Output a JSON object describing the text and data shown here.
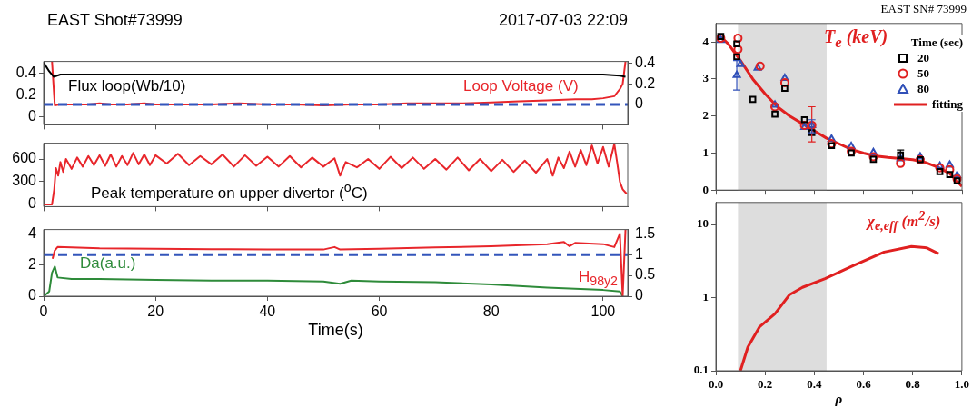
{
  "chart_data": [
    {
      "type": "line",
      "title": "EAST Shot#73999",
      "subtitle": "2017-07-03 22:09",
      "xlim": [
        0,
        104.4
      ],
      "xticks": [
        0,
        20,
        40,
        60,
        80,
        100
      ],
      "ylim": [
        -0.07,
        0.51
      ],
      "yticks": [
        0,
        0.2,
        0.4
      ],
      "y2lim": [
        -0.2,
        0.42
      ],
      "y2ticks": [
        0,
        0.2,
        0.4
      ],
      "tick_labels": "y",
      "ref_lines": [
        {
          "axis": "y2",
          "value": 0,
          "color": "#3355bb",
          "line_style": "dashed"
        }
      ],
      "series": [
        {
          "name": "Flux loop(Wb/10)",
          "color": "#000000",
          "x": [
            0,
            1,
            1.8,
            3,
            10,
            20,
            40,
            60,
            80,
            100,
            103,
            104
          ],
          "values": [
            0.5,
            0.42,
            0.37,
            0.39,
            0.39,
            0.39,
            0.39,
            0.39,
            0.39,
            0.39,
            0.38,
            0.37
          ]
        },
        {
          "name": "Loop Voltage (V)",
          "color": "#e8262b",
          "axis": "y2",
          "x": [
            1.5,
            2,
            3,
            5,
            8,
            10,
            12,
            15,
            18,
            20,
            25,
            30,
            35,
            40,
            45,
            50,
            55,
            60,
            65,
            70,
            75,
            80,
            85,
            90,
            95,
            98,
            100,
            102,
            103,
            103.5,
            104
          ],
          "values": [
            0.42,
            -0.01,
            0,
            0,
            0,
            0.01,
            0,
            0,
            0.01,
            0,
            0,
            0,
            0.01,
            0,
            0,
            -0.01,
            0,
            0,
            0.01,
            0.01,
            0.01,
            0.02,
            0.03,
            0.04,
            0.05,
            0.05,
            0.06,
            0.08,
            0.15,
            0.2,
            0.42
          ]
        }
      ]
    },
    {
      "type": "line",
      "xlim": [
        0,
        104.4
      ],
      "xticks": [
        0,
        20,
        40,
        60,
        80,
        100
      ],
      "ylim": [
        -30,
        810
      ],
      "yticks": [
        0,
        300,
        600
      ],
      "tick_labels": "y",
      "series": [
        {
          "name": "Peak temperature on upper divertor ($^{o}$C)",
          "color": "#e8262b",
          "x": [
            0,
            1.5,
            1.9,
            2.2,
            2.6,
            3,
            3.5,
            4,
            5,
            6,
            7,
            8,
            9,
            10,
            11,
            12,
            13,
            14,
            15,
            16,
            17,
            18,
            19,
            20,
            22,
            24,
            26,
            28,
            30,
            32,
            34,
            36,
            38,
            40,
            42,
            44,
            46,
            48,
            50,
            52,
            53,
            54,
            56,
            58,
            60,
            62,
            64,
            66,
            68,
            70,
            72,
            74,
            76,
            78,
            80,
            82,
            84,
            86,
            88,
            90,
            91,
            92,
            93,
            94,
            95,
            96,
            97,
            98,
            99,
            100,
            101,
            102,
            102.5,
            103,
            103.5,
            104.2
          ],
          "values": [
            0,
            0,
            200,
            480,
            380,
            560,
            430,
            600,
            470,
            620,
            500,
            640,
            520,
            650,
            510,
            660,
            500,
            640,
            520,
            680,
            530,
            660,
            520,
            650,
            540,
            670,
            520,
            640,
            530,
            660,
            500,
            650,
            510,
            630,
            500,
            640,
            490,
            620,
            500,
            610,
            380,
            560,
            490,
            600,
            470,
            630,
            480,
            620,
            470,
            600,
            460,
            620,
            450,
            600,
            440,
            590,
            430,
            580,
            420,
            600,
            380,
            620,
            480,
            700,
            500,
            720,
            520,
            780,
            540,
            760,
            500,
            800,
            560,
            300,
            200,
            140
          ]
        }
      ]
    },
    {
      "type": "line",
      "xlabel": "Time(s)",
      "xlim": [
        0,
        104.4
      ],
      "xticks": [
        0,
        20,
        40,
        60,
        80,
        100
      ],
      "ylim": [
        0,
        4.27
      ],
      "yticks": [
        0,
        2,
        4
      ],
      "y2lim": [
        0,
        1.6
      ],
      "y2ticks": [
        0,
        0.5,
        1,
        1.5
      ],
      "ref_lines": [
        {
          "axis": "y2",
          "value": 1,
          "color": "#3355bb",
          "line_style": "dashed"
        }
      ],
      "series": [
        {
          "name": "H$_{98y2}$",
          "color": "#e8262b",
          "axis": "y2",
          "x": [
            1.6,
            2,
            2.5,
            5,
            10,
            20,
            30,
            40,
            50,
            52,
            53,
            60,
            70,
            80,
            90,
            93,
            94,
            95,
            100,
            102,
            103,
            103.5,
            104
          ],
          "values": [
            0.9,
            1.1,
            1.18,
            1.17,
            1.15,
            1.14,
            1.13,
            1.12,
            1.12,
            1.18,
            1.12,
            1.14,
            1.17,
            1.2,
            1.25,
            1.3,
            1.2,
            1.28,
            1.25,
            1.18,
            1.5,
            0,
            1.6
          ]
        },
        {
          "name": "Da(a.u.)",
          "color": "#2e8b3a",
          "x": [
            0,
            1,
            1.5,
            2,
            2.5,
            5,
            10,
            20,
            30,
            40,
            50,
            53,
            55,
            60,
            70,
            80,
            90,
            100,
            103,
            103.5
          ],
          "values": [
            0,
            0.3,
            1.5,
            1.9,
            1.2,
            1.1,
            1.1,
            1.05,
            1.0,
            1.0,
            0.95,
            0.8,
            1.0,
            0.95,
            0.9,
            0.75,
            0.55,
            0.4,
            0.3,
            0
          ]
        }
      ]
    },
    {
      "type": "scatter",
      "title": "EAST SN# 73999",
      "annotations": [
        "T$_{e}$ (keV)"
      ],
      "legend": "top right",
      "legend_title": "Time (sec)",
      "xlim": [
        0,
        1
      ],
      "xticks": [
        0,
        0.2,
        0.4,
        0.6,
        0.8,
        1
      ],
      "ylim": [
        0,
        4.5
      ],
      "yticks": [
        0,
        1,
        2,
        3,
        4
      ],
      "tick_labels": "y",
      "bands": [
        {
          "axis": "x",
          "from": 0.09,
          "to": 0.45,
          "color": "#dddddd"
        }
      ],
      "series": [
        {
          "name": "20",
          "color": "#000000",
          "marker": "square",
          "x": [
            0.02,
            0.085,
            0.085,
            0.15,
            0.24,
            0.28,
            0.36,
            0.39,
            0.47,
            0.55,
            0.64,
            0.75,
            0.83,
            0.91,
            0.95,
            0.98
          ],
          "values": [
            4.15,
            3.95,
            3.6,
            2.45,
            2.05,
            2.75,
            1.9,
            1.55,
            1.2,
            1.0,
            0.83,
            0.95,
            0.82,
            0.5,
            0.42,
            0.25
          ],
          "errors": [
            null,
            null,
            null,
            null,
            null,
            null,
            null,
            null,
            null,
            null,
            null,
            [
              0.85,
              1.08
            ],
            null,
            null,
            null,
            null
          ]
        },
        {
          "name": "50",
          "color": "#e02020",
          "marker": "circle",
          "x": [
            0.02,
            0.09,
            0.09,
            0.18,
            0.24,
            0.28,
            0.36,
            0.39,
            0.47,
            0.55,
            0.64,
            0.75,
            0.83,
            0.91,
            0.95,
            0.98
          ],
          "values": [
            4.1,
            4.1,
            3.8,
            3.35,
            2.25,
            2.9,
            1.75,
            1.75,
            1.25,
            1.05,
            0.9,
            0.72,
            0.82,
            0.6,
            0.55,
            0.3
          ],
          "errors": [
            null,
            null,
            null,
            null,
            null,
            null,
            null,
            [
              1.3,
              2.25
            ],
            null,
            null,
            null,
            null,
            null,
            null,
            null,
            null
          ]
        },
        {
          "name": "80",
          "color": "#3050b8",
          "marker": "triangle",
          "x": [
            0.02,
            0.085,
            0.1,
            0.17,
            0.24,
            0.28,
            0.36,
            0.39,
            0.47,
            0.55,
            0.64,
            0.75,
            0.83,
            0.91,
            0.95,
            0.98
          ],
          "values": [
            4.05,
            3.1,
            3.4,
            3.3,
            2.3,
            3.02,
            1.7,
            1.75,
            1.38,
            1.18,
            1.02,
            0.85,
            0.9,
            0.65,
            0.68,
            0.4
          ],
          "errors": [
            null,
            [
              2.7,
              3.5
            ],
            null,
            null,
            null,
            null,
            null,
            [
              1.55,
              1.9
            ],
            null,
            null,
            null,
            null,
            null,
            null,
            null,
            null
          ]
        },
        {
          "name": "fitting",
          "type": "line",
          "color": "#e02020",
          "marker": "none",
          "x": [
            0.01,
            0.05,
            0.1,
            0.15,
            0.2,
            0.25,
            0.3,
            0.35,
            0.4,
            0.45,
            0.5,
            0.55,
            0.6,
            0.65,
            0.7,
            0.75,
            0.8,
            0.85,
            0.9,
            0.95,
            1.0
          ],
          "values": [
            4.2,
            3.95,
            3.5,
            3.0,
            2.6,
            2.25,
            2.0,
            1.8,
            1.6,
            1.4,
            1.25,
            1.1,
            1.0,
            0.92,
            0.88,
            0.85,
            0.82,
            0.75,
            0.62,
            0.45,
            0.1
          ]
        }
      ]
    },
    {
      "type": "line",
      "annotations": [
        "χ$_{e,eff}$ (m$^{2}$/s)"
      ],
      "xlabel": "ρ",
      "log": "y",
      "xlim": [
        0,
        1
      ],
      "xticks": [
        {
          "value": 0,
          "label": "0.0"
        },
        0.2,
        0.4,
        0.6,
        0.8,
        {
          "value": 1,
          "label": "1.0"
        }
      ],
      "ylim": [
        0.1,
        20
      ],
      "yticks": [
        0.1,
        1,
        10
      ],
      "bands": [
        {
          "axis": "x",
          "from": 0.09,
          "to": 0.45,
          "color": "#dddddd"
        }
      ],
      "series": [
        {
          "color": "#e02020",
          "x": [
            0.1,
            0.13,
            0.178,
            0.24,
            0.3,
            0.352,
            0.444,
            0.56,
            0.684,
            0.795,
            0.856,
            0.905
          ],
          "values": [
            0.1,
            0.21,
            0.4,
            0.6,
            1.1,
            1.38,
            1.82,
            2.75,
            4.2,
            5.0,
            4.8,
            4.0
          ]
        }
      ]
    }
  ]
}
